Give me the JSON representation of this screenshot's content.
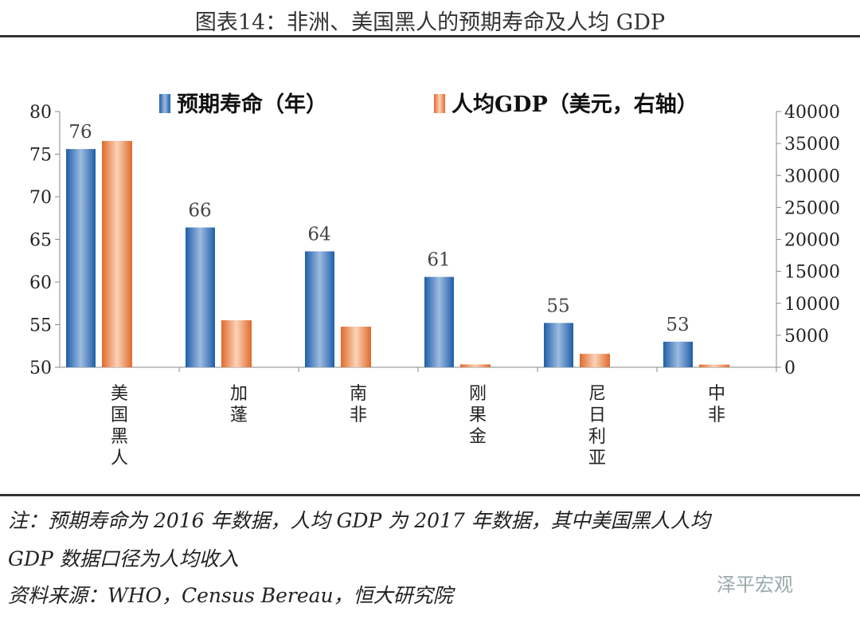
{
  "title": "图表14：非洲、美国黑人的预期寿命及人均 GDP",
  "chart_data": {
    "type": "bar",
    "categories": [
      "美国黑人",
      "加蓬",
      "南非",
      "刚果金",
      "尼日利亚",
      "中非"
    ],
    "series": [
      {
        "name": "预期寿命（年）",
        "axis": "left",
        "color": "#2e6db4",
        "values": [
          75.6,
          66.4,
          63.6,
          60.6,
          55.2,
          53.0
        ],
        "labels": [
          "76",
          "66",
          "64",
          "61",
          "55",
          "53"
        ]
      },
      {
        "name": "人均GDP（美元，右轴）",
        "axis": "right",
        "color": "#e8834a",
        "values": [
          35400,
          7350,
          6350,
          450,
          2100,
          420
        ]
      }
    ],
    "ylim_left": [
      50,
      80
    ],
    "yticks_left": [
      "50",
      "55",
      "60",
      "65",
      "70",
      "75",
      "80"
    ],
    "ylim_right": [
      0,
      40000
    ],
    "yticks_right": [
      "0",
      "5000",
      "10000",
      "15000",
      "20000",
      "25000",
      "30000",
      "35000",
      "40000"
    ],
    "legend": "top"
  },
  "notes": {
    "line1": "注：预期寿命为 2016 年数据，人均 GDP 为 2017 年数据，其中美国黑人人均",
    "line2": "GDP 数据口径为人均收入",
    "source": "资料来源：WHO，Census Bereau，恒大研究院"
  },
  "watermark": "泽平宏观"
}
